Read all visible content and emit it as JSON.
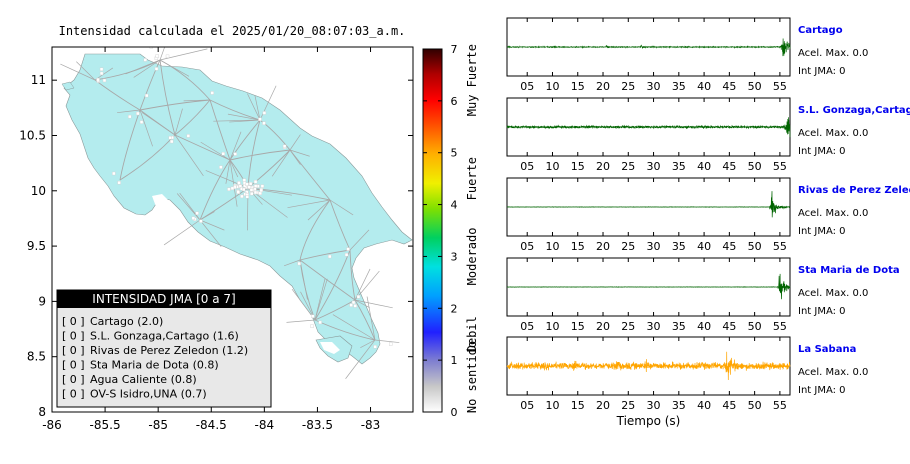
{
  "map": {
    "title": "Intensidad calculada el 2025/01/20_08:07:03_a.m.",
    "x_ticks": [
      "-86",
      "-85.5",
      "-85",
      "-84.5",
      "-84",
      "-83.5",
      "-83"
    ],
    "y_ticks": [
      "8",
      "8.5",
      "9",
      "9.5",
      "10",
      "10.5",
      "11"
    ],
    "xlim": [
      -86,
      -82.6
    ],
    "ylim": [
      8,
      11.3
    ],
    "colors": {
      "land": "#b4ecee",
      "sea": "#ffffff",
      "roads": "#a8a8a8",
      "towns": "#ffffff"
    }
  },
  "colorbar": {
    "ticks": [
      "0",
      "1",
      "2",
      "3",
      "4",
      "5",
      "6",
      "7"
    ],
    "labels": [
      "No sentido",
      "Debil",
      "Moderado",
      "Fuerte",
      "Muy Fuerte"
    ]
  },
  "legend": {
    "title": "INTENSIDAD JMA [0 a 7]",
    "items": [
      {
        "value": "[ 0 ]",
        "label": "Cartago (2.0)"
      },
      {
        "value": "[ 0 ]",
        "label": "S.L. Gonzaga,Cartago (1.6)"
      },
      {
        "value": "[ 0 ]",
        "label": "Rivas de Perez Zeledon (1.2)"
      },
      {
        "value": "[ 0 ]",
        "label": "Sta Maria de Dota (0.8)"
      },
      {
        "value": "[ 0 ]",
        "label": "Agua Caliente (0.8)"
      },
      {
        "value": "[ 0 ]",
        "label": "OV-S Isidro,UNA (0.7)"
      }
    ]
  },
  "chart_data": [
    {
      "type": "line",
      "title": "Cartago",
      "xlabel": "",
      "x_ticks": [
        "05",
        "10",
        "15",
        "20",
        "25",
        "30",
        "35",
        "40",
        "45",
        "50",
        "55"
      ],
      "xlim": [
        1,
        57
      ],
      "series": [
        {
          "color": "#006400",
          "noise": 0.03,
          "bursts": [
            {
              "t": 20.5,
              "amp": 0.15
            },
            {
              "t": 27.5,
              "amp": 0.12
            },
            {
              "t": 55.5,
              "amp": 1.0
            }
          ]
        }
      ],
      "accel_label": "Acel. Max. 0.0",
      "int_label": "Int JMA: 0"
    },
    {
      "type": "line",
      "title": "S.L. Gonzaga,Cartago",
      "xlabel": "",
      "x_ticks": [
        "05",
        "10",
        "15",
        "20",
        "25",
        "30",
        "35",
        "40",
        "45",
        "50",
        "55"
      ],
      "xlim": [
        1,
        57
      ],
      "series": [
        {
          "color": "#006400",
          "noise": 0.08,
          "bursts": [
            {
              "t": 56.3,
              "amp": 1.0
            }
          ]
        }
      ],
      "accel_label": "Acel. Max. 0.0",
      "int_label": "Int JMA: 0"
    },
    {
      "type": "line",
      "title": "Rivas de Perez Zeledon",
      "xlabel": "",
      "x_ticks": [
        "05",
        "10",
        "15",
        "20",
        "25",
        "30",
        "35",
        "40",
        "45",
        "50",
        "55"
      ],
      "xlim": [
        1,
        57
      ],
      "series": [
        {
          "color": "#006400",
          "noise": 0.01,
          "bursts": [
            {
              "t": 53.3,
              "amp": 1.0
            }
          ]
        }
      ],
      "accel_label": "Acel. Max. 0.0",
      "int_label": "Int JMA: 0"
    },
    {
      "type": "line",
      "title": "Sta Maria de Dota",
      "xlabel": "",
      "x_ticks": [
        "05",
        "10",
        "15",
        "20",
        "25",
        "30",
        "35",
        "40",
        "45",
        "50",
        "55"
      ],
      "xlim": [
        1,
        57
      ],
      "series": [
        {
          "color": "#006400",
          "noise": 0.01,
          "bursts": [
            {
              "t": 54.8,
              "amp": 1.0
            }
          ]
        }
      ],
      "accel_label": "Acel. Max. 0.0",
      "int_label": "Int JMA: 0"
    },
    {
      "type": "line",
      "title": "La Sabana",
      "xlabel": "Tiempo (s)",
      "x_ticks": [
        "05",
        "10",
        "15",
        "20",
        "25",
        "30",
        "35",
        "40",
        "45",
        "50",
        "55"
      ],
      "xlim": [
        1,
        57
      ],
      "series": [
        {
          "color": "#ffa500",
          "noise": 0.22,
          "bursts": [
            {
              "t": 14.2,
              "amp": 0.45
            },
            {
              "t": 22.5,
              "amp": 0.4
            },
            {
              "t": 28.5,
              "amp": 0.5
            },
            {
              "t": 44.3,
              "amp": 1.0
            }
          ]
        }
      ],
      "accel_label": "Acel. Max. 0.0",
      "int_label": "Int JMA: 0"
    }
  ]
}
